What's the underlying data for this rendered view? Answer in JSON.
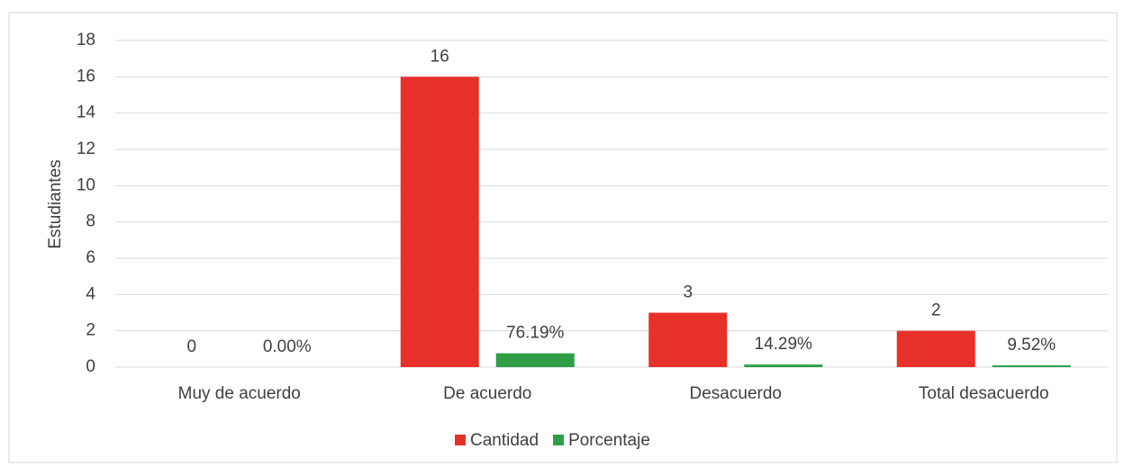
{
  "chart_data": {
    "type": "bar",
    "y_label": "Estudiantes",
    "categories": [
      "Muy de acuerdo",
      "De acuerdo",
      "Desacuerdo",
      "Total desacuerdo"
    ],
    "series": [
      {
        "name": "Cantidad",
        "color": "#e8302a",
        "values": [
          0,
          16,
          3,
          2
        ]
      },
      {
        "name": "Porcentaje",
        "color": "#2e9e47",
        "values": [
          0,
          0.7619,
          0.1429,
          0.0952
        ],
        "value_labels": [
          "0.00%",
          "76.19%",
          "14.29%",
          "9.52%"
        ]
      }
    ],
    "ylim": [
      0,
      18
    ],
    "yticks": [
      0,
      2,
      4,
      6,
      8,
      10,
      12,
      14,
      16,
      18
    ],
    "grid": true,
    "legend": "bottom"
  }
}
